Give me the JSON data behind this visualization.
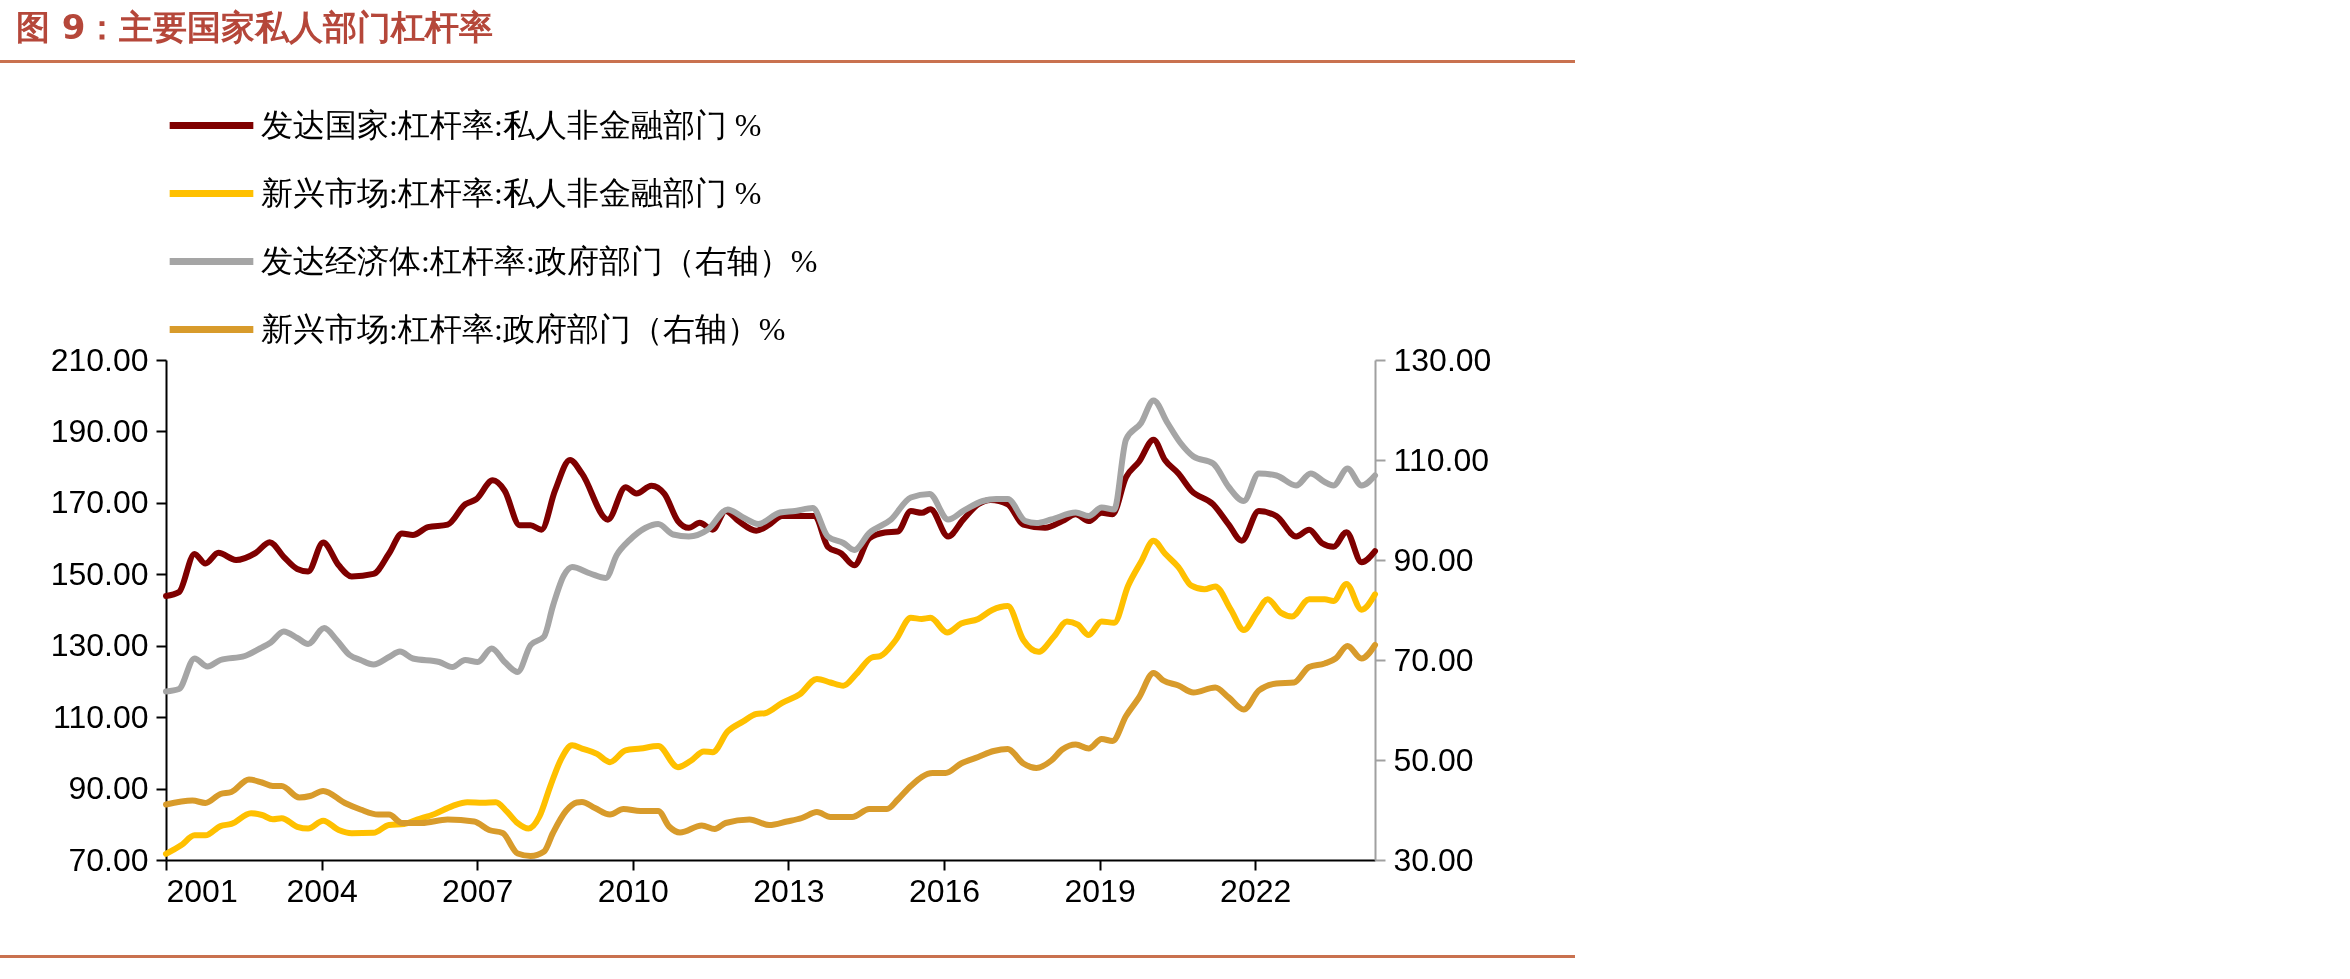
{
  "chart_data": {
    "type": "line",
    "title": "图 9：主要国家私人部门杠杆率",
    "legend": "top",
    "xlim": [
      2001,
      2024.31
    ],
    "xticks": [
      2001,
      2004,
      2007,
      2010,
      2013,
      2016,
      2019,
      2022
    ],
    "ylim": [
      70,
      210
    ],
    "yticks": [
      {
        "value": 70,
        "label": "70.00"
      },
      {
        "value": 90,
        "label": "90.00"
      },
      {
        "value": 110,
        "label": "110.00"
      },
      {
        "value": 130,
        "label": "130.00"
      },
      {
        "value": 150,
        "label": "150.00"
      },
      {
        "value": 170,
        "label": "170.00"
      },
      {
        "value": 190,
        "label": "190.00"
      },
      {
        "value": 210,
        "label": "210.00"
      }
    ],
    "y2lim": [
      30,
      130
    ],
    "y2ticks": [
      {
        "value": 30,
        "label": "30.00"
      },
      {
        "value": 50,
        "label": "50.00"
      },
      {
        "value": 70,
        "label": "70.00"
      },
      {
        "value": 90,
        "label": "90.00"
      },
      {
        "value": 110,
        "label": "110.00"
      },
      {
        "value": 130,
        "label": "130.00"
      }
    ],
    "series": [
      {
        "name": "发达国家:杠杆率:私人非金融部门 %",
        "color": "#7f0000",
        "x": [
          2001.0,
          2001.25,
          2001.55,
          2001.76,
          2002.01,
          2002.35,
          2002.73,
          2003.0,
          2003.27,
          2003.53,
          2003.74,
          2004.03,
          2004.33,
          2004.58,
          2005.0,
          2005.3,
          2005.55,
          2005.76,
          2006.05,
          2006.43,
          2006.77,
          2006.98,
          2007.3,
          2007.53,
          2007.82,
          2008.03,
          2008.24,
          2008.5,
          2008.79,
          2009.02,
          2009.52,
          2009.86,
          2010.07,
          2010.36,
          2010.61,
          2010.87,
          2011.08,
          2011.29,
          2011.54,
          2011.79,
          2012.04,
          2012.38,
          2012.63,
          2012.88,
          2013.39,
          2013.51,
          2013.76,
          2014.02,
          2014.27,
          2014.56,
          2014.86,
          2015.11,
          2015.36,
          2015.57,
          2015.74,
          2016.08,
          2016.37,
          2016.66,
          2016.9,
          2017.23,
          2017.53,
          2017.95,
          2018.28,
          2018.54,
          2018.79,
          2019.04,
          2019.25,
          2019.51,
          2019.76,
          2020.04,
          2020.26,
          2020.52,
          2020.77,
          2021.19,
          2021.49,
          2021.74,
          2022.07,
          2022.41,
          2022.79,
          2023.04,
          2023.29,
          2023.51,
          2023.76,
          2024.05,
          2024.31
        ],
        "values": [
          143.9,
          145,
          155.7,
          153,
          156,
          154,
          156,
          159,
          154.9,
          151.5,
          150.8,
          158.9,
          152.5,
          149.4,
          150.1,
          155.8,
          161.4,
          161,
          163.2,
          163.9,
          169.6,
          171,
          176.3,
          173.4,
          163.7,
          163.7,
          162.5,
          173.4,
          182,
          178.2,
          165.3,
          174.4,
          172.6,
          174.8,
          172.5,
          164.9,
          163,
          164.4,
          162.5,
          167.7,
          164.9,
          162.2,
          163.9,
          166.3,
          166.3,
          166.3,
          157.7,
          155.8,
          152.5,
          160.1,
          161.7,
          162,
          167.7,
          167.2,
          168.2,
          160.6,
          165.3,
          169.6,
          170.8,
          169.6,
          163.9,
          163,
          164.9,
          166.8,
          164.9,
          167.2,
          166.8,
          177.2,
          181.5,
          187.7,
          182,
          178.2,
          173.4,
          169.6,
          163.9,
          159.4,
          167.7,
          166.3,
          160.6,
          162.5,
          158.7,
          157.7,
          161.8,
          153.4,
          156.5
        ]
      },
      {
        "name": "新兴市场:杠杆率:私人非金融部门 %",
        "color": "#ffc000",
        "x": [
          2001.0,
          2001.29,
          2001.55,
          2001.76,
          2002.05,
          2002.26,
          2002.64,
          2002.85,
          2003.06,
          2003.23,
          2003.53,
          2003.74,
          2004.03,
          2004.33,
          2004.58,
          2005.0,
          2005.3,
          2005.59,
          2005.84,
          2006.18,
          2006.52,
          2006.81,
          2007.11,
          2007.36,
          2007.57,
          2007.78,
          2007.99,
          2008.2,
          2008.41,
          2008.62,
          2008.83,
          2009.02,
          2009.31,
          2009.56,
          2009.86,
          2010.15,
          2010.49,
          2010.87,
          2011.12,
          2011.37,
          2011.54,
          2011.83,
          2012.13,
          2012.38,
          2012.55,
          2012.88,
          2013.22,
          2013.55,
          2013.81,
          2014.06,
          2014.31,
          2014.61,
          2014.77,
          2015.07,
          2015.36,
          2015.57,
          2015.74,
          2016.06,
          2016.33,
          2016.66,
          2016.93,
          2017.23,
          2017.53,
          2017.82,
          2018.12,
          2018.37,
          2018.58,
          2018.79,
          2019.04,
          2019.28,
          2019.55,
          2019.8,
          2020.04,
          2020.26,
          2020.52,
          2020.77,
          2021.02,
          2021.23,
          2021.53,
          2021.78,
          2022.03,
          2022.24,
          2022.5,
          2022.71,
          2023.04,
          2023.34,
          2023.51,
          2023.76,
          2024.05,
          2024.31
        ],
        "values": [
          71.7,
          74.1,
          76.9,
          76.9,
          79.5,
          80.1,
          83.1,
          82.6,
          81.4,
          81.7,
          79.3,
          78.8,
          81,
          78.4,
          77.5,
          77.6,
          79.8,
          80.1,
          81.3,
          82.9,
          85.1,
          86.2,
          86,
          86.2,
          83.6,
          80.3,
          78.8,
          82.2,
          90.7,
          98.3,
          102.1,
          101.2,
          99.7,
          97.4,
          100.7,
          101.2,
          101.9,
          96,
          97.8,
          100.4,
          100.2,
          106,
          108.8,
          110.9,
          111.1,
          114,
          116.4,
          120.7,
          119.7,
          118.8,
          122.1,
          126.7,
          127.1,
          131.6,
          137.8,
          137.5,
          137.8,
          133.7,
          136.2,
          137.5,
          140,
          141.1,
          131.6,
          128.3,
          132.6,
          136.8,
          135.9,
          133,
          136.8,
          136.4,
          146.8,
          153.5,
          159.4,
          155.8,
          152,
          146.8,
          145.8,
          146.6,
          140.1,
          134.4,
          139.2,
          143,
          139.2,
          138.2,
          143,
          143,
          142.5,
          147.3,
          140.1,
          144.4
        ]
      },
      {
        "name": "发达经济体:杠杆率:政府部门（右轴）%",
        "color": "#a5a5a5",
        "axis": "y2",
        "x": [
          2001.0,
          2001.25,
          2001.55,
          2001.8,
          2002.05,
          2002.52,
          2002.81,
          2003.02,
          2003.27,
          2003.53,
          2003.74,
          2004.05,
          2004.29,
          2004.54,
          2004.75,
          2005.0,
          2005.3,
          2005.51,
          2005.76,
          2006.27,
          2006.52,
          2006.77,
          2007.01,
          2007.28,
          2007.53,
          2007.78,
          2008.03,
          2008.29,
          2008.46,
          2008.67,
          2008.83,
          2009.18,
          2009.48,
          2009.69,
          2009.94,
          2010.24,
          2010.49,
          2010.78,
          2011.08,
          2011.45,
          2011.83,
          2012.13,
          2012.42,
          2012.84,
          2013.13,
          2013.47,
          2013.76,
          2014.06,
          2014.27,
          2014.56,
          2014.98,
          2015.36,
          2015.72,
          2016.08,
          2016.37,
          2016.75,
          2017.01,
          2017.23,
          2017.57,
          2017.78,
          2018.07,
          2018.54,
          2018.79,
          2019.04,
          2019.28,
          2019.51,
          2019.8,
          2020.04,
          2020.31,
          2020.56,
          2020.81,
          2021.19,
          2021.49,
          2021.78,
          2022.07,
          2022.41,
          2022.79,
          2023.07,
          2023.34,
          2023.51,
          2023.78,
          2024.05,
          2024.31
        ],
        "values": [
          63.7,
          64.2,
          70.3,
          68.7,
          70,
          70.8,
          72.3,
          73.5,
          75.7,
          74.4,
          73.2,
          76.4,
          74,
          71,
          70,
          69.1,
          70.6,
          71.7,
          70.3,
          69.6,
          68.6,
          70,
          69.6,
          72.3,
          69.6,
          67.6,
          73,
          74.7,
          80.8,
          86.9,
          88.6,
          87.3,
          86.4,
          91,
          94,
          96.4,
          97.2,
          95.1,
          94.7,
          96.1,
          100.1,
          98.5,
          97.2,
          99.5,
          99.8,
          100.4,
          94.7,
          93.4,
          92,
          95.4,
          98.1,
          102.5,
          103.2,
          98.1,
          99.8,
          101.8,
          102.2,
          102.2,
          97.8,
          97.4,
          98.1,
          99.5,
          98.8,
          100.5,
          100.1,
          114.1,
          117.4,
          121.9,
          117.4,
          113.4,
          110.7,
          109.3,
          104.6,
          101.8,
          107.3,
          106.9,
          104.9,
          107.3,
          105.6,
          104.9,
          108.3,
          104.9,
          106.9
        ]
      },
      {
        "name": "新兴市场:杠杆率:政府部门（右轴）%",
        "color": "#d89b2b",
        "axis": "y2",
        "x": [
          2001.0,
          2001.51,
          2001.76,
          2002.05,
          2002.26,
          2002.6,
          2002.85,
          2003.06,
          2003.23,
          2003.57,
          2003.78,
          2004.03,
          2004.45,
          2004.75,
          2005.09,
          2005.3,
          2005.55,
          2005.93,
          2006.43,
          2006.94,
          2007.23,
          2007.49,
          2007.78,
          2008.03,
          2008.29,
          2008.46,
          2008.71,
          2008.92,
          2009.02,
          2009.27,
          2009.56,
          2009.82,
          2010.15,
          2010.49,
          2010.7,
          2010.91,
          2011.33,
          2011.58,
          2011.79,
          2012.25,
          2012.63,
          2012.97,
          2013.26,
          2013.55,
          2013.81,
          2014.23,
          2014.56,
          2014.9,
          2015.11,
          2015.36,
          2015.78,
          2016.03,
          2016.33,
          2016.66,
          2016.96,
          2017.23,
          2017.53,
          2017.78,
          2018.07,
          2018.28,
          2018.54,
          2018.79,
          2019.04,
          2019.25,
          2019.51,
          2019.76,
          2020.04,
          2020.23,
          2020.52,
          2020.81,
          2021.23,
          2021.49,
          2021.78,
          2022.07,
          2022.41,
          2022.75,
          2023.04,
          2023.34,
          2023.55,
          2023.78,
          2024.05,
          2024.31
        ],
        "values": [
          41.1,
          41.9,
          41.4,
          43.2,
          43.6,
          46.1,
          45.5,
          44.8,
          44.8,
          42.5,
          42.8,
          43.8,
          41.4,
          40.1,
          39.1,
          39.1,
          37.4,
          37.4,
          38.1,
          37.7,
          36,
          35.4,
          31.3,
          30.8,
          31.7,
          35.4,
          39.8,
          41.5,
          41.6,
          40.4,
          39.1,
          40.2,
          39.8,
          39.8,
          36.7,
          35.5,
          36.9,
          36.2,
          37.4,
          38.1,
          37,
          37.7,
          38.4,
          39.6,
          38.6,
          38.6,
          40.2,
          40.2,
          42.1,
          44.8,
          47.4,
          47.4,
          49.3,
          50.6,
          51.8,
          52.2,
          49.3,
          48.4,
          49.9,
          52.1,
          53.1,
          52.3,
          54.2,
          53.8,
          58.8,
          62.5,
          67.4,
          65.9,
          64.9,
          63.5,
          64.5,
          62.5,
          60.1,
          63.9,
          65.3,
          65.5,
          68.6,
          69.3,
          70.3,
          72.8,
          70.3,
          73
        ]
      }
    ]
  }
}
